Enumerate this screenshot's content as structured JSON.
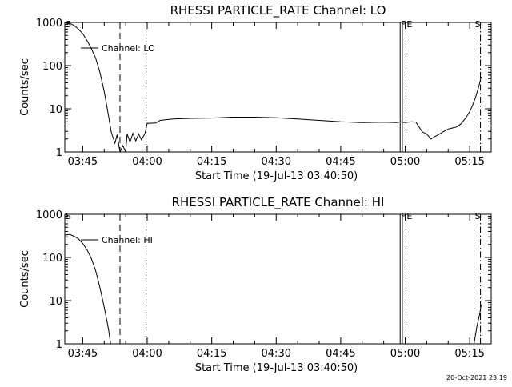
{
  "timestamp": "20-Oct-2021 23:19",
  "chart_data": [
    {
      "type": "line",
      "title": "RHESSI PARTICLE_RATE Channel: LO",
      "xlabel": "Start Time (19-Jul-13 03:40:50)",
      "ylabel": "Counts/sec",
      "y_scale": "log",
      "ylim": [
        1,
        1000
      ],
      "xlim": [
        "03:40:50",
        "05:20:00"
      ],
      "xticks": [
        "03:45",
        "04:00",
        "04:15",
        "04:30",
        "04:45",
        "05:00",
        "05:15"
      ],
      "yticks": [
        "1",
        "10",
        "100",
        "1000"
      ],
      "legend": {
        "placement": "top-left",
        "entries": [
          "Channel: LO"
        ]
      },
      "markers": [
        {
          "label": "S",
          "time": "03:40:50",
          "style": "none"
        },
        {
          "label": "",
          "time": "03:53:40",
          "style": "dashed"
        },
        {
          "label": "",
          "time": "03:59:45",
          "style": "dotted"
        },
        {
          "label": "F",
          "time": "04:58:50",
          "style": "solid"
        },
        {
          "label": "",
          "time": "04:59:20",
          "style": "solid"
        },
        {
          "label": "E",
          "time": "05:00:10",
          "style": "dotted"
        },
        {
          "label": "S",
          "time": "05:16:00",
          "style": "dashed"
        },
        {
          "label": "",
          "time": "05:17:30",
          "style": "dashdot"
        }
      ],
      "series": [
        {
          "name": "Channel: LO",
          "points": [
            [
              "03:40:50",
              1000
            ],
            [
              "03:42:00",
              950
            ],
            [
              "03:43:00",
              850
            ],
            [
              "03:44:00",
              700
            ],
            [
              "03:45:00",
              550
            ],
            [
              "03:46:00",
              380
            ],
            [
              "03:47:00",
              250
            ],
            [
              "03:48:00",
              150
            ],
            [
              "03:49:00",
              70
            ],
            [
              "03:50:00",
              25
            ],
            [
              "03:51:00",
              7
            ],
            [
              "03:51:40",
              2.8
            ],
            [
              "03:52:30",
              1.6
            ],
            [
              "03:53:00",
              2.5
            ],
            [
              "03:53:40",
              1.0
            ],
            [
              "03:54:20",
              1.4
            ],
            [
              "03:55:00",
              1.0
            ],
            [
              "03:55:20",
              2.6
            ],
            [
              "03:56:00",
              1.7
            ],
            [
              "03:56:40",
              2.7
            ],
            [
              "03:57:20",
              1.8
            ],
            [
              "03:58:00",
              2.6
            ],
            [
              "03:58:40",
              1.9
            ],
            [
              "03:59:30",
              2.7
            ],
            [
              "04:00:00",
              4.6
            ],
            [
              "04:02:00",
              4.7
            ],
            [
              "04:03:00",
              5.4
            ],
            [
              "04:06:00",
              5.8
            ],
            [
              "04:10:00",
              6.0
            ],
            [
              "04:15:00",
              6.1
            ],
            [
              "04:20:00",
              6.4
            ],
            [
              "04:25:00",
              6.4
            ],
            [
              "04:30:00",
              6.2
            ],
            [
              "04:35:00",
              5.8
            ],
            [
              "04:40:00",
              5.4
            ],
            [
              "04:45:00",
              5.0
            ],
            [
              "04:50:00",
              4.8
            ],
            [
              "04:55:00",
              4.9
            ],
            [
              "04:58:00",
              4.8
            ],
            [
              "04:59:00",
              5.0
            ],
            [
              "05:00:00",
              4.8
            ],
            [
              "05:01:30",
              5.0
            ],
            [
              "05:02:30",
              4.9
            ],
            [
              "05:04:00",
              2.9
            ],
            [
              "05:05:00",
              2.6
            ],
            [
              "05:06:00",
              2.0
            ],
            [
              "05:07:00",
              2.3
            ],
            [
              "05:08:00",
              2.6
            ],
            [
              "05:09:00",
              3.0
            ],
            [
              "05:10:00",
              3.4
            ],
            [
              "05:11:00",
              3.6
            ],
            [
              "05:12:00",
              3.8
            ],
            [
              "05:13:00",
              4.5
            ],
            [
              "05:14:00",
              6.0
            ],
            [
              "05:15:00",
              8.5
            ],
            [
              "05:15:40",
              12
            ],
            [
              "05:16:20",
              18
            ],
            [
              "05:17:00",
              30
            ],
            [
              "05:17:40",
              55
            ]
          ]
        }
      ]
    },
    {
      "type": "line",
      "title": "RHESSI PARTICLE_RATE Channel: HI",
      "xlabel": "Start Time (19-Jul-13 03:40:50)",
      "ylabel": "Counts/sec",
      "y_scale": "log",
      "ylim": [
        1,
        1000
      ],
      "xlim": [
        "03:40:50",
        "05:20:00"
      ],
      "xticks": [
        "03:45",
        "04:00",
        "04:15",
        "04:30",
        "04:45",
        "05:00",
        "05:15"
      ],
      "yticks": [
        "1",
        "10",
        "100",
        "1000"
      ],
      "legend": {
        "placement": "top-left",
        "entries": [
          "Channel: HI"
        ]
      },
      "markers": [
        {
          "label": "S",
          "time": "03:40:50",
          "style": "none"
        },
        {
          "label": "",
          "time": "03:53:40",
          "style": "dashed"
        },
        {
          "label": "",
          "time": "03:59:45",
          "style": "dotted"
        },
        {
          "label": "F",
          "time": "04:58:50",
          "style": "solid"
        },
        {
          "label": "",
          "time": "04:59:20",
          "style": "solid"
        },
        {
          "label": "E",
          "time": "05:00:10",
          "style": "dotted"
        },
        {
          "label": "S",
          "time": "05:16:00",
          "style": "dashed"
        },
        {
          "label": "",
          "time": "05:17:30",
          "style": "dashdot"
        }
      ],
      "series": [
        {
          "name": "Channel: HI",
          "points": [
            [
              "03:40:50",
              330
            ],
            [
              "03:42:00",
              340
            ],
            [
              "03:43:00",
              310
            ],
            [
              "03:44:00",
              270
            ],
            [
              "03:45:00",
              210
            ],
            [
              "03:46:00",
              150
            ],
            [
              "03:47:00",
              95
            ],
            [
              "03:48:00",
              50
            ],
            [
              "03:49:00",
              20
            ],
            [
              "03:50:00",
              7
            ],
            [
              "03:51:00",
              2.2
            ],
            [
              "03:51:30",
              1.0
            ],
            [
              "05:16:00",
              1.0
            ],
            [
              "05:16:40",
              2.5
            ],
            [
              "05:17:20",
              5.0
            ],
            [
              "05:17:40",
              8.0
            ]
          ]
        }
      ]
    }
  ]
}
